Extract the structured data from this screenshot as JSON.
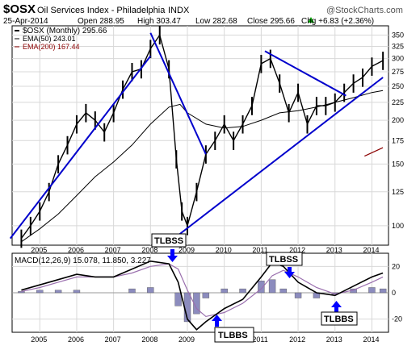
{
  "header": {
    "symbol": "$OSX",
    "name": "Oil Services Index - Philadelphia",
    "exchange": "INDX",
    "date": "25-Apr-2014",
    "open": "Open 288.95",
    "high": "High 303.47",
    "low": "Low 282.68",
    "close": "Close 295.66",
    "change": "Chg +6.83 (+2.36%)",
    "change_arrow": "up-arrow-icon",
    "watermark": "@StockCharts.com"
  },
  "legend": {
    "price": "$OSX (Monthly) 295.66",
    "ema50": "EMA(50) 243.01",
    "ema200": "EMA(200) 167.44"
  },
  "colors": {
    "price": "#000000",
    "ema50": "#000000",
    "ema200": "#8b0000",
    "trendline": "#0000cc",
    "macd_hist": "#8c8cbe",
    "macd_signal": "#9a6fae",
    "annotation_box": "#ffffff",
    "annotation_arrow": "#0000ff"
  },
  "chart_data": [
    {
      "type": "line",
      "title": "$OSX (Monthly)",
      "x_axis": [
        "2005",
        "2006",
        "2007",
        "2008",
        "2009",
        "2010",
        "2011",
        "2012",
        "2013",
        "2014"
      ],
      "y_scale": "log",
      "ylim": [
        88,
        372
      ],
      "y_ticks": [
        100,
        125,
        150,
        175,
        200,
        225,
        250,
        275,
        300,
        325,
        350
      ],
      "grid": true,
      "series": [
        {
          "name": "$OSX",
          "x": [
            2004.5,
            2004.75,
            2005.0,
            2005.25,
            2005.5,
            2005.75,
            2006.0,
            2006.25,
            2006.5,
            2006.75,
            2007.0,
            2007.25,
            2007.5,
            2007.75,
            2008.0,
            2008.25,
            2008.5,
            2008.7,
            2008.85,
            2009.0,
            2009.25,
            2009.5,
            2009.75,
            2010.0,
            2010.25,
            2010.5,
            2010.75,
            2011.0,
            2011.25,
            2011.5,
            2011.75,
            2012.0,
            2012.25,
            2012.5,
            2012.75,
            2013.0,
            2013.25,
            2013.5,
            2013.75,
            2014.0,
            2014.3
          ],
          "values": [
            92,
            100,
            110,
            125,
            150,
            170,
            195,
            210,
            200,
            185,
            210,
            245,
            275,
            280,
            320,
            350,
            280,
            155,
            110,
            100,
            125,
            160,
            175,
            195,
            175,
            195,
            220,
            290,
            300,
            255,
            210,
            240,
            195,
            220,
            220,
            225,
            240,
            255,
            265,
            285,
            296
          ]
        },
        {
          "name": "EMA(50)",
          "x": [
            2004.5,
            2005.0,
            2005.5,
            2006.0,
            2006.5,
            2007.0,
            2007.5,
            2008.0,
            2008.5,
            2008.8,
            2009.0,
            2009.5,
            2010.0,
            2010.5,
            2011.0,
            2011.5,
            2012.0,
            2012.5,
            2013.0,
            2013.5,
            2014.0,
            2014.3
          ],
          "values": [
            90,
            98,
            108,
            122,
            138,
            152,
            170,
            195,
            218,
            222,
            210,
            195,
            190,
            192,
            200,
            210,
            213,
            218,
            225,
            232,
            240,
            243
          ]
        },
        {
          "name": "EMA(200)",
          "x": [
            2013.8,
            2014.3
          ],
          "values": [
            158,
            167
          ]
        }
      ],
      "trendlines": [
        {
          "x": [
            2004.2,
            2008.0
          ],
          "values": [
            92,
            305
          ]
        },
        {
          "x": [
            2008.0,
            2009.5
          ],
          "values": [
            355,
            160
          ]
        },
        {
          "x": [
            2008.4,
            2014.3
          ],
          "values": [
            88,
            265
          ]
        },
        {
          "x": [
            2011.1,
            2013.3
          ],
          "values": [
            315,
            235
          ]
        }
      ]
    },
    {
      "type": "bar",
      "title": "MACD(12,26,9)",
      "legend_text": "MACD(12,26,9) 15.078, 11.850, 3.227",
      "x_axis": [
        "2005",
        "2006",
        "2007",
        "2008",
        "2009",
        "2010",
        "2011",
        "2012",
        "2013",
        "2014"
      ],
      "ylim": [
        -30,
        30
      ],
      "y_ticks": [
        -20,
        0,
        20
      ],
      "grid": true,
      "series": [
        {
          "name": "MACD",
          "x": [
            2004.5,
            2005.0,
            2005.5,
            2006.0,
            2006.5,
            2007.0,
            2007.5,
            2008.0,
            2008.5,
            2008.75,
            2009.0,
            2009.25,
            2009.5,
            2010.0,
            2010.5,
            2011.0,
            2011.3,
            2011.6,
            2012.0,
            2012.5,
            2013.0,
            2013.5,
            2014.0,
            2014.3
          ],
          "values": [
            2,
            6,
            10,
            14,
            12,
            12,
            18,
            24,
            22,
            8,
            -20,
            -28,
            -22,
            -12,
            -5,
            12,
            23,
            20,
            8,
            0,
            -2,
            5,
            12,
            15
          ]
        },
        {
          "name": "Signal",
          "x": [
            2004.5,
            2005.0,
            2005.5,
            2006.0,
            2006.5,
            2007.0,
            2007.5,
            2008.0,
            2008.5,
            2008.75,
            2009.0,
            2009.25,
            2009.5,
            2010.0,
            2010.5,
            2011.0,
            2011.3,
            2011.6,
            2012.0,
            2012.5,
            2013.0,
            2013.5,
            2014.0,
            2014.3
          ],
          "values": [
            1,
            4,
            8,
            12,
            12,
            12,
            15,
            20,
            22,
            18,
            2,
            -12,
            -18,
            -15,
            -8,
            3,
            13,
            17,
            12,
            4,
            -1,
            2,
            8,
            12
          ]
        },
        {
          "name": "Histogram",
          "x": [
            2004.5,
            2005.0,
            2005.5,
            2006.0,
            2006.5,
            2007.0,
            2007.5,
            2008.0,
            2008.5,
            2008.75,
            2009.0,
            2009.25,
            2009.5,
            2010.0,
            2010.5,
            2011.0,
            2011.3,
            2011.6,
            2012.0,
            2012.5,
            2013.0,
            2013.5,
            2014.0,
            2014.3
          ],
          "values": [
            1,
            2,
            2,
            2,
            0,
            0,
            3,
            4,
            0,
            -10,
            -22,
            -16,
            -4,
            3,
            3,
            9,
            10,
            3,
            -4,
            -4,
            -1,
            3,
            4,
            3
          ]
        }
      ]
    }
  ],
  "annotations": [
    {
      "label": "TLBSS",
      "arrow": "down-arrow-icon"
    },
    {
      "label": "TLBBS",
      "arrow": "up-arrow-icon"
    },
    {
      "label": "TLBSS",
      "arrow": "down-arrow-icon"
    },
    {
      "label": "TLBBS",
      "arrow": "up-arrow-icon"
    }
  ]
}
